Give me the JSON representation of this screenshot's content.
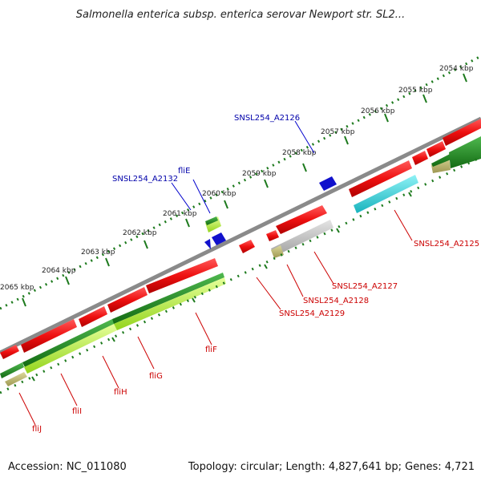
{
  "title": "Salmonella enterica subsp. enterica serovar Newport str. SL2...",
  "footer": {
    "accession": "Accession: NC_011080",
    "summary": "Topology: circular; Length: 4,827,641 bp; Genes: 4,721"
  },
  "colors": {
    "backbone": "#888888",
    "tick": "#1d7a1d",
    "cds": "#e01010",
    "cds_dark": "#a00000",
    "blue": "#1111cc",
    "green_dark": "#1f7f1f",
    "green_light": "#b9f040",
    "teal": "#22c9d3",
    "gray_bar": "#b5b5b5",
    "khaki": "#b9b36a",
    "label_blue": "#0000aa",
    "label_red": "#cc0000"
  },
  "ticks": [
    "2054 kbp",
    "2055 kbp",
    "2056 kbp",
    "2057 kbp",
    "2058 kbp",
    "2059 kbp",
    "2060 kbp",
    "2061 kbp",
    "2062 kbp",
    "2063 kbp",
    "2064 kbp",
    "2065 kbp"
  ],
  "labels_top": [
    "SNSL254_A2126",
    "fliE",
    "SNSL254_A2132"
  ],
  "labels_bottom": [
    "SNSL254_A2125",
    "SNSL254_A2127",
    "SNSL254_A2128",
    "SNSL254_A2129",
    "fliF",
    "fliG",
    "fliH",
    "fliI",
    "fliJ"
  ]
}
